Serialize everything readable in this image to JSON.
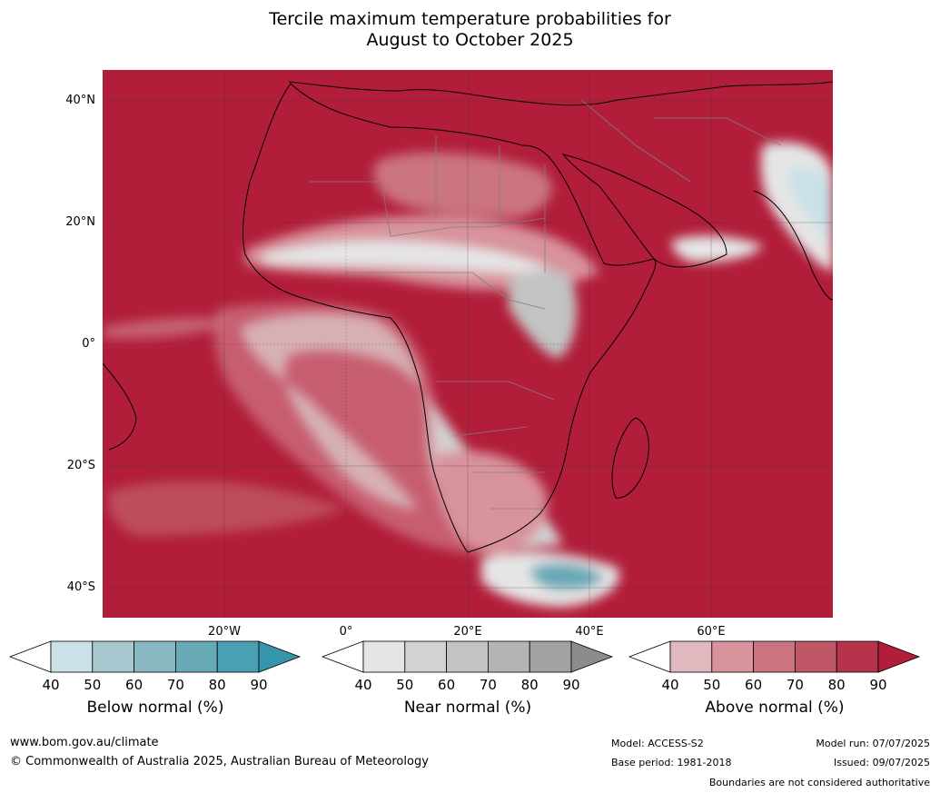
{
  "title_line1": "Tercile maximum temperature probabilities for",
  "title_line2": "August to October 2025",
  "lat_labels": [
    "40°N",
    "20°N",
    "0°",
    "20°S",
    "40°S"
  ],
  "lon_labels": [
    "20°W",
    "0°",
    "20°E",
    "40°E",
    "60°E"
  ],
  "legend": {
    "below": {
      "title": "Below normal (%)",
      "ticks": [
        "40",
        "50",
        "60",
        "70",
        "80",
        "90"
      ],
      "colors": [
        "#ffffff",
        "#c9e1e7",
        "#a7c8ce",
        "#88b6c1",
        "#68a9b6",
        "#4a9fb2",
        "#3596ab"
      ]
    },
    "near": {
      "title": "Near normal (%)",
      "ticks": [
        "40",
        "50",
        "60",
        "70",
        "80",
        "90"
      ],
      "colors": [
        "#ffffff",
        "#e5e5e5",
        "#d2d2d2",
        "#c3c3c3",
        "#b4b4b4",
        "#a2a2a2",
        "#8c8c8c"
      ]
    },
    "above": {
      "title": "Above normal (%)",
      "ticks": [
        "40",
        "50",
        "60",
        "70",
        "80",
        "90"
      ],
      "colors": [
        "#ffffff",
        "#e2b8bf",
        "#d8939c",
        "#cb7480",
        "#c05767",
        "#b7334c",
        "#b21e3a"
      ]
    }
  },
  "footer": {
    "url": "www.bom.gov.au/climate",
    "copyright": "© Commonwealth of Australia 2025, Australian Bureau of Meteorology",
    "model": "Model: ACCESS-S2",
    "base_period": "Base period: 1981-2018",
    "model_run": "Model run: 07/07/2025",
    "issued": "Issued: 09/07/2025",
    "disclaimer": "Boundaries are not considered authoritative"
  }
}
